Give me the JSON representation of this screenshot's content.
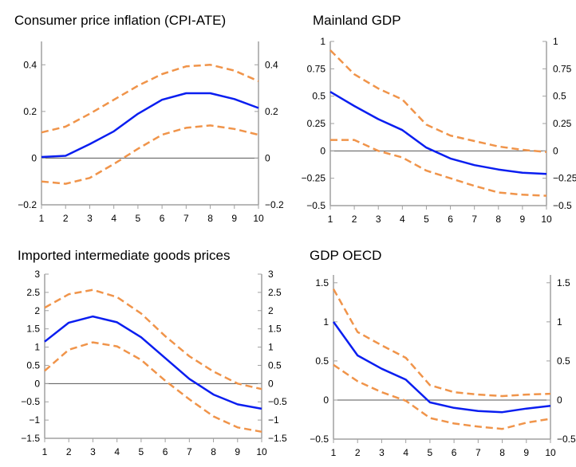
{
  "colors": {
    "center": "#0a1ef0",
    "band": "#f0944a",
    "axis": "#a0a0a0",
    "zero": "#555555"
  },
  "chart_data": [
    {
      "type": "line",
      "title": "Consumer price inflation (CPI-ATE)",
      "x": [
        1,
        2,
        3,
        4,
        5,
        6,
        7,
        8,
        9,
        10
      ],
      "ylim": [
        -0.2,
        0.5
      ],
      "yticks": [
        -0.2,
        0,
        0.2,
        0.4
      ],
      "ytick_labels": [
        "−0.2",
        "0",
        "0.2",
        "0.4"
      ],
      "dual_y_axis": true,
      "grid": false,
      "series": [
        {
          "style": "solid",
          "color": "#0a1ef0",
          "values": [
            0.005,
            0.01,
            0.06,
            0.115,
            0.19,
            0.25,
            0.278,
            0.278,
            0.253,
            0.215
          ]
        },
        {
          "style": "dashed",
          "color": "#f0944a",
          "values": [
            0.11,
            0.135,
            0.19,
            0.25,
            0.31,
            0.36,
            0.393,
            0.4,
            0.375,
            0.33
          ]
        },
        {
          "style": "dashed",
          "color": "#f0944a",
          "values": [
            -0.1,
            -0.11,
            -0.085,
            -0.025,
            0.04,
            0.1,
            0.13,
            0.14,
            0.125,
            0.1
          ]
        }
      ]
    },
    {
      "type": "line",
      "title": "Mainland GDP",
      "x": [
        1,
        2,
        3,
        4,
        5,
        6,
        7,
        8,
        9,
        10
      ],
      "ylim": [
        -0.5,
        1
      ],
      "yticks": [
        -0.5,
        -0.25,
        0,
        0.25,
        0.5,
        0.75,
        1
      ],
      "ytick_labels": [
        "−0.5",
        "−0.25",
        "0",
        "0.25",
        "0.5",
        "0.75",
        "1"
      ],
      "dual_y_axis": true,
      "grid": false,
      "series": [
        {
          "style": "solid",
          "color": "#0a1ef0",
          "values": [
            0.54,
            0.41,
            0.29,
            0.19,
            0.03,
            -0.07,
            -0.13,
            -0.17,
            -0.2,
            -0.21
          ]
        },
        {
          "style": "dashed",
          "color": "#f0944a",
          "values": [
            0.92,
            0.7,
            0.57,
            0.47,
            0.24,
            0.14,
            0.09,
            0.04,
            0.01,
            -0.01
          ]
        },
        {
          "style": "dashed",
          "color": "#f0944a",
          "values": [
            0.1,
            0.1,
            0,
            -0.06,
            -0.18,
            -0.25,
            -0.32,
            -0.38,
            -0.4,
            -0.41
          ]
        }
      ]
    },
    {
      "type": "line",
      "title": "Imported intermediate goods prices",
      "x": [
        1,
        2,
        3,
        4,
        5,
        6,
        7,
        8,
        9,
        10
      ],
      "ylim": [
        -1.5,
        3
      ],
      "yticks": [
        -1.5,
        -1,
        -0.5,
        0,
        0.5,
        1,
        1.5,
        2,
        2.5,
        3
      ],
      "ytick_labels": [
        "−1.5",
        "−1",
        "−0.5",
        "0",
        "0.5",
        "1",
        "1.5",
        "2",
        "2.5",
        "3"
      ],
      "dual_y_axis": true,
      "grid": false,
      "series": [
        {
          "style": "solid",
          "color": "#0a1ef0",
          "values": [
            1.15,
            1.67,
            1.84,
            1.68,
            1.27,
            0.7,
            0.13,
            -0.3,
            -0.57,
            -0.69
          ]
        },
        {
          "style": "dashed",
          "color": "#f0944a",
          "values": [
            2.08,
            2.45,
            2.57,
            2.37,
            1.92,
            1.3,
            0.75,
            0.33,
            0,
            -0.15
          ]
        },
        {
          "style": "dashed",
          "color": "#f0944a",
          "values": [
            0.35,
            0.93,
            1.13,
            1.02,
            0.65,
            0.08,
            -0.43,
            -0.9,
            -1.2,
            -1.32
          ]
        }
      ]
    },
    {
      "type": "line",
      "title": "GDP OECD",
      "x": [
        1,
        2,
        3,
        4,
        5,
        6,
        7,
        8,
        9,
        10
      ],
      "ylim": [
        -0.5,
        1.6
      ],
      "yticks": [
        -0.5,
        0,
        0.5,
        1,
        1.5
      ],
      "ytick_labels": [
        "−0.5",
        "0",
        "0.5",
        "1",
        "1.5"
      ],
      "dual_y_axis": true,
      "grid": false,
      "series": [
        {
          "style": "solid",
          "color": "#0a1ef0",
          "values": [
            1.0,
            0.57,
            0.4,
            0.26,
            -0.03,
            -0.1,
            -0.14,
            -0.155,
            -0.11,
            -0.075
          ]
        },
        {
          "style": "dashed",
          "color": "#f0944a",
          "values": [
            1.42,
            0.87,
            0.7,
            0.54,
            0.19,
            0.1,
            0.07,
            0.05,
            0.07,
            0.08
          ]
        },
        {
          "style": "dashed",
          "color": "#f0944a",
          "values": [
            0.45,
            0.24,
            0.1,
            -0.01,
            -0.23,
            -0.3,
            -0.34,
            -0.37,
            -0.29,
            -0.24
          ]
        }
      ]
    }
  ]
}
